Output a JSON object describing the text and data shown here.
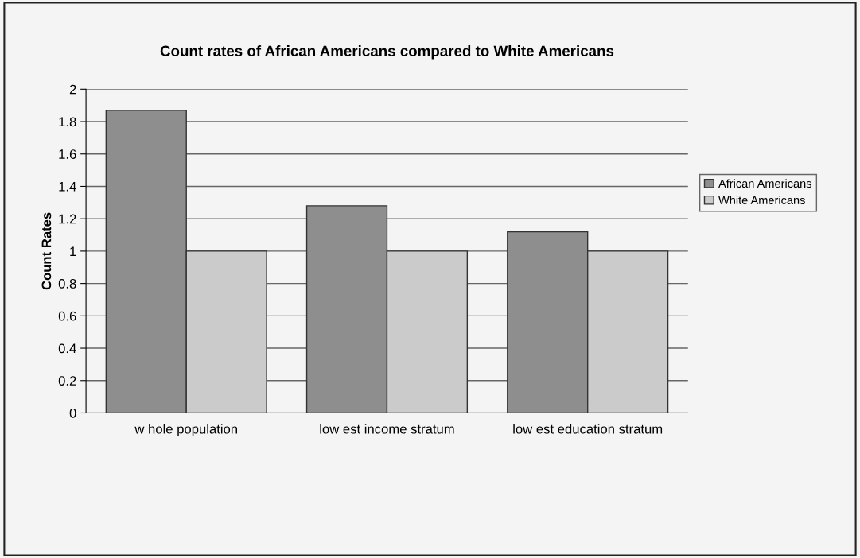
{
  "chart_data": {
    "type": "bar",
    "title": "Count rates of African Americans compared to White Americans",
    "ylabel": "Count Rates",
    "categories": [
      "w hole population",
      "low est income stratum",
      "low est education stratum"
    ],
    "series": [
      {
        "name": "African Americans",
        "color": "#8e8e8e",
        "values": [
          1.87,
          1.28,
          1.12
        ]
      },
      {
        "name": "White Americans",
        "color": "#cbcbcb",
        "values": [
          1,
          1,
          1
        ]
      }
    ],
    "ylim": [
      0,
      2
    ],
    "yticks": [
      0,
      0.2,
      0.4,
      0.6,
      0.8,
      1,
      1.2,
      1.4,
      1.6,
      1.8,
      2
    ],
    "grid": "y",
    "legend": "right"
  }
}
